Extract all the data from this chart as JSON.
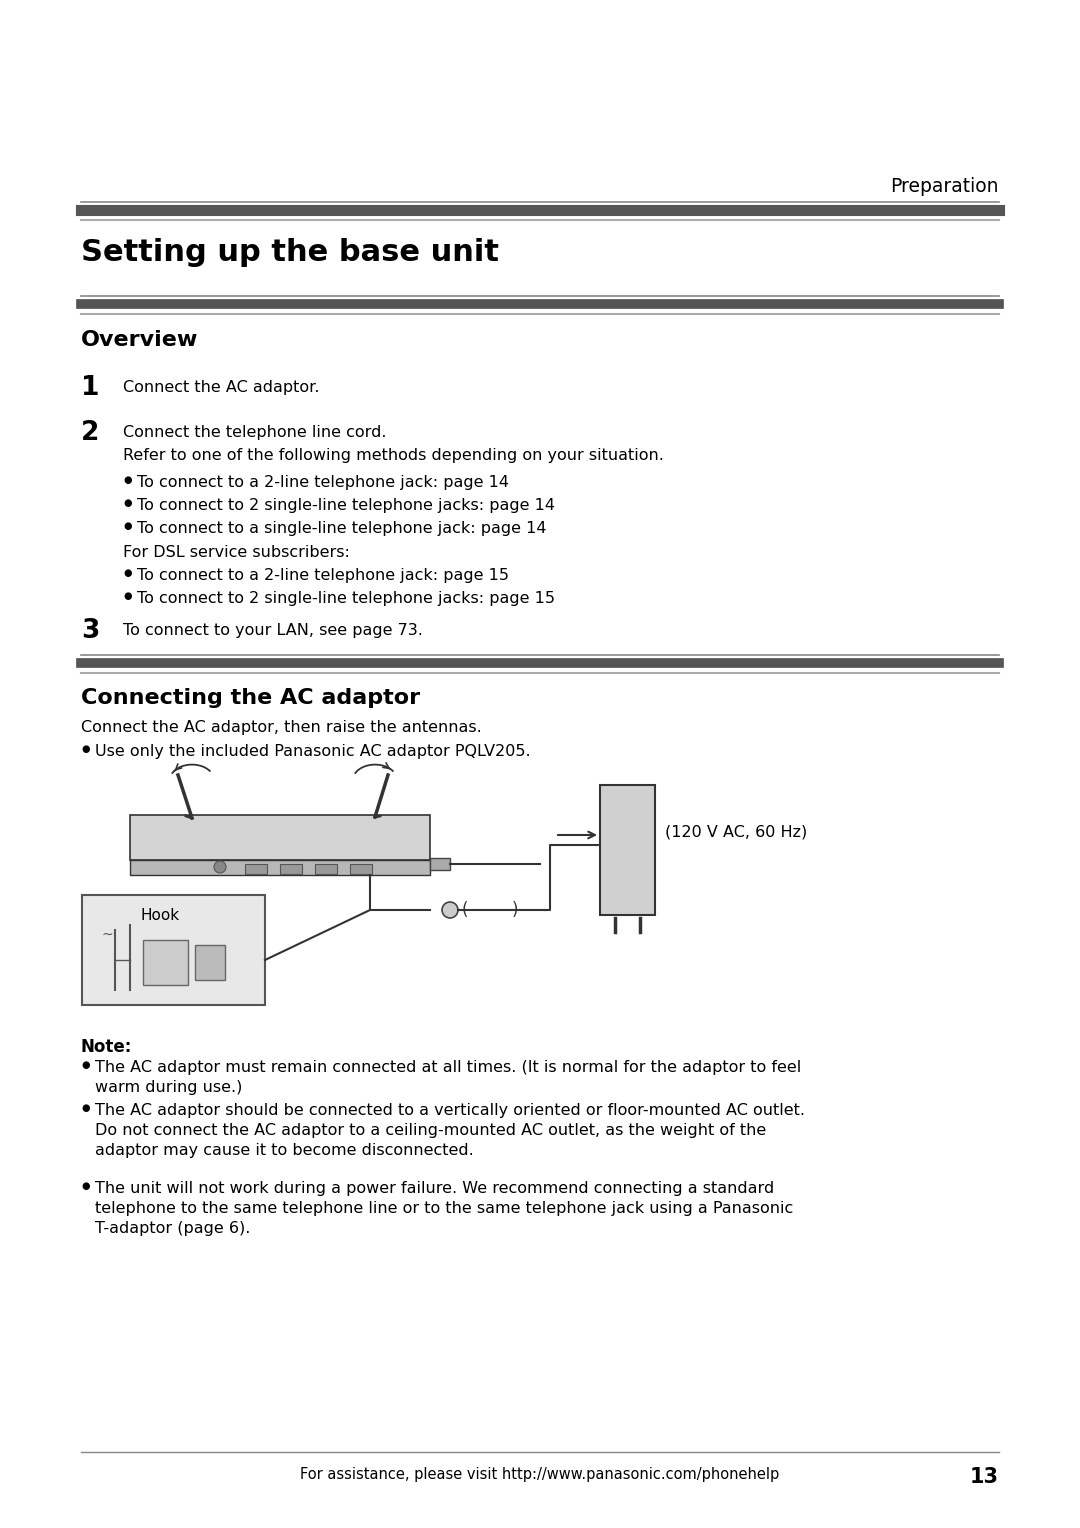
{
  "bg_color": "#ffffff",
  "L": 0.075,
  "R": 0.925,
  "text_color": "#000000",
  "dark_bar_color": "#555555",
  "top_label": "Preparation",
  "main_title": "Setting up the base unit",
  "section1_title": "Overview",
  "step1_num": "1",
  "step1_text": "Connect the AC adaptor.",
  "step2_num": "2",
  "step2_text": "Connect the telephone line cord.",
  "step2_sub": "Refer to one of the following methods depending on your situation.",
  "bullet1": "To connect to a 2-line telephone jack: page 14",
  "bullet2": "To connect to 2 single-line telephone jacks: page 14",
  "bullet3": "To connect to a single-line telephone jack: page 14",
  "for_dsl": "For DSL service subscribers:",
  "bullet4": "To connect to a 2-line telephone jack: page 15",
  "bullet5": "To connect to 2 single-line telephone jacks: page 15",
  "step3_num": "3",
  "step3_text": "To connect to your LAN, see page 73.",
  "section2_title": "Connecting the AC adaptor",
  "connect_desc": "Connect the AC adaptor, then raise the antennas.",
  "use_only": "Use only the included Panasonic AC adaptor PQLV205.",
  "ac_label": "(120 V AC, 60 Hz)",
  "hook_label": "Hook",
  "note_title": "Note:",
  "note1a": "The AC adaptor must remain connected at all times. (It is normal for the adaptor to feel",
  "note1b": "warm during use.)",
  "note2a": "The AC adaptor should be connected to a vertically oriented or floor-mounted AC outlet.",
  "note2b": "Do not connect the AC adaptor to a ceiling-mounted AC outlet, as the weight of the",
  "note2c": "adaptor may cause it to become disconnected.",
  "note3a": "The unit will not work during a power failure. We recommend connecting a standard",
  "note3b": "telephone to the same telephone line or to the same telephone jack using a Panasonic",
  "note3c": "T-adaptor (page 6).",
  "footer_text": "For assistance, please visit http://www.panasonic.com/phonehelp",
  "footer_page": "13"
}
